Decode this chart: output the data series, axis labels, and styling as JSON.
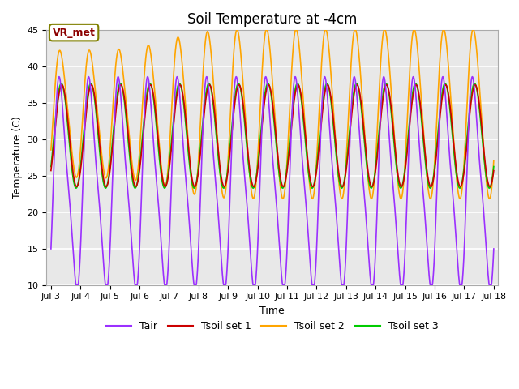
{
  "title": "Soil Temperature at -4cm",
  "xlabel": "Time",
  "ylabel": "Temperature (C)",
  "ylim": [
    10,
    45
  ],
  "xlim_days": [
    3,
    18
  ],
  "annotation": "VR_met",
  "line_colors": {
    "Tair": "#9B30FF",
    "Tsoil set 1": "#CC0000",
    "Tsoil set 2": "#FFA500",
    "Tsoil set 3": "#00CC00"
  },
  "legend_labels": [
    "Tair",
    "Tsoil set 1",
    "Tsoil set 2",
    "Tsoil set 3"
  ],
  "xtick_labels": [
    "Jul 3",
    "Jul 4",
    "Jul 5",
    "Jul 6",
    "Jul 7",
    "Jul 8",
    "Jul 9",
    "Jul 10",
    "Jul 11",
    "Jul 12",
    "Jul 13",
    "Jul 14",
    "Jul 15",
    "Jul 16",
    "Jul 17",
    "Jul 18"
  ],
  "xtick_positions": [
    3,
    4,
    5,
    6,
    7,
    8,
    9,
    10,
    11,
    12,
    13,
    14,
    15,
    16,
    17,
    18
  ],
  "ytick_labels": [
    "10",
    "15",
    "20",
    "25",
    "30",
    "35",
    "40",
    "45"
  ],
  "ytick_positions": [
    10,
    15,
    20,
    25,
    30,
    35,
    40,
    45
  ],
  "plot_bg_color": "#E8E8E8",
  "fig_bg_color": "#FFFFFF",
  "grid_color": "#FFFFFF",
  "title_fontsize": 12,
  "axis_label_fontsize": 9,
  "tick_fontsize": 8,
  "legend_fontsize": 9,
  "line_width": 1.2
}
